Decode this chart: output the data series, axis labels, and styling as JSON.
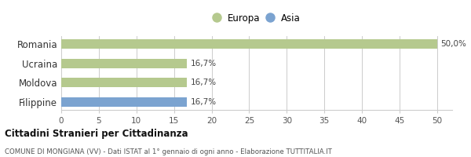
{
  "categories": [
    "Romania",
    "Ucraina",
    "Moldova",
    "Filippine"
  ],
  "values": [
    50.0,
    16.7,
    16.7,
    16.7
  ],
  "colors": [
    "#b5c98e",
    "#b5c98e",
    "#b5c98e",
    "#7ba3d0"
  ],
  "legend": [
    {
      "label": "Europa",
      "color": "#b5c98e"
    },
    {
      "label": "Asia",
      "color": "#7ba3d0"
    }
  ],
  "xlim": [
    0,
    52
  ],
  "xticks": [
    0,
    5,
    10,
    15,
    20,
    25,
    30,
    35,
    40,
    45,
    50
  ],
  "bar_labels": [
    "50,0%",
    "16,7%",
    "16,7%",
    "16,7%"
  ],
  "title_bold": "Cittadini Stranieri per Cittadinanza",
  "subtitle": "COMUNE DI MONGIANA (VV) - Dati ISTAT al 1° gennaio di ogni anno - Elaborazione TUTTITALIA.IT",
  "background_color": "#ffffff",
  "grid_color": "#cccccc",
  "bar_height": 0.5
}
